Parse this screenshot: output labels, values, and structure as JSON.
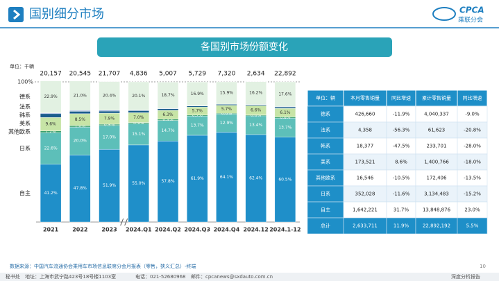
{
  "header": {
    "title": "国别细分市场",
    "logo": "CPCA",
    "logo_sub": "乘联分会"
  },
  "banner": "各国别市场份额变化",
  "chart_data": {
    "type": "stacked_bar_100",
    "unit": "单位：千辆",
    "categories": [
      "2021",
      "2022",
      "2023",
      "2024.Q1",
      "2024.Q2",
      "2024.Q3",
      "2024.Q4",
      "2024.12",
      "2024.1-12"
    ],
    "totals": [
      20157,
      20545,
      21707,
      4836,
      5007,
      5729,
      7320,
      2634,
      22892
    ],
    "total_labels": [
      "20,157",
      "20,545",
      "21,707",
      "4,836",
      "5,007",
      "5,729",
      "7,320",
      "2,634",
      "22,892"
    ],
    "ylim": [
      0,
      100
    ],
    "yticks": [
      {
        "value": 100,
        "label": "100%"
      }
    ],
    "series": [
      {
        "name": "自主",
        "color": "#1f8fc9",
        "values": [
          41.2,
          47.8,
          51.9,
          55.0,
          57.8,
          61.9,
          64.1,
          62.4,
          60.5
        ],
        "value_labels": [
          "41.2%",
          "47.8%",
          "51.9%",
          "55.0%",
          "57.8%",
          "61.9%",
          "64.1%",
          "62.4%",
          "60.5%"
        ]
      },
      {
        "name": "日系",
        "color": "#5dbfb9",
        "values": [
          22.6,
          20.0,
          17.0,
          15.1,
          14.7,
          13.7,
          12.9,
          13.4,
          13.7
        ],
        "value_labels": [
          "22.6%",
          "20.0%",
          "17.0%",
          "15.1%",
          "14.7%",
          "13.7%",
          "12.9%",
          "13.4%",
          "13.7%"
        ]
      },
      {
        "name": "其他欧系",
        "color": "#3aa06c",
        "values": [
          1.2,
          1.0,
          0.9,
          0.9,
          0.9,
          0.7,
          0.6,
          0.6,
          0.8
        ],
        "value_labels": [
          "1.2%",
          "1.0%",
          "0.9%",
          "0.9%",
          "0.9%",
          "0.7%",
          "0.6%",
          "0.6%",
          "0.8%"
        ]
      },
      {
        "name": "美系",
        "color": "#c7e4a6",
        "values": [
          9.6,
          8.5,
          7.9,
          7.0,
          6.3,
          5.7,
          5.7,
          6.6,
          6.1
        ],
        "value_labels": [
          "9.6%",
          "8.5%",
          "7.9%",
          "7.0%",
          "6.3%",
          "5.7%",
          "5.7%",
          "6.6%",
          "6.1%"
        ]
      },
      {
        "name": "韩系",
        "color": "#1b5d8d",
        "values": [
          2.7,
          1.7,
          1.5,
          1.5,
          1.2,
          0.8,
          0.7,
          0.7,
          1.0
        ],
        "value_labels": [
          null,
          null,
          null,
          null,
          null,
          null,
          null,
          null,
          null
        ]
      },
      {
        "name": "法系",
        "color": "#8fa8d8",
        "values": [
          0.5,
          0.6,
          0.6,
          0.4,
          0.2,
          0.2,
          0.1,
          0.2,
          0.3
        ],
        "value_labels": [
          null,
          null,
          null,
          null,
          null,
          null,
          null,
          null,
          null
        ]
      },
      {
        "name": "德系",
        "color": "#e2f1e2",
        "values": [
          22.9,
          21.0,
          20.4,
          20.1,
          18.7,
          16.9,
          15.9,
          16.2,
          17.6
        ],
        "value_labels": [
          "22.9%",
          "21.0%",
          "20.4%",
          "20.1%",
          "18.7%",
          "16.9%",
          "15.9%",
          "16.2%",
          "17.6%"
        ]
      }
    ]
  },
  "table": {
    "header": [
      "单位：辆",
      "本月零售销量",
      "同比增速",
      "累计零售销量",
      "同比增速"
    ],
    "rows": [
      [
        "德系",
        "426,660",
        "-11.9%",
        "4,040,337",
        "-9.0%"
      ],
      [
        "法系",
        "4,358",
        "-56.3%",
        "61,623",
        "-20.8%"
      ],
      [
        "韩系",
        "18,377",
        "-47.5%",
        "233,701",
        "-28.0%"
      ],
      [
        "美系",
        "173,521",
        "8.6%",
        "1,400,766",
        "-18.0%"
      ],
      [
        "其他欧系",
        "16,546",
        "-10.5%",
        "172,406",
        "-13.5%"
      ],
      [
        "日系",
        "352,028",
        "-11.6%",
        "3,134,483",
        "-15.2%"
      ],
      [
        "自主",
        "1,642,221",
        "31.7%",
        "13,848,876",
        "23.0%"
      ],
      [
        "总计",
        "2,633,711",
        "11.9%",
        "22,892,192",
        "5.5%"
      ]
    ]
  },
  "source": "数据来源：中国汽车流通协会乘用车市场信息联席分会月报表（零售，狭义汇总）-终端",
  "footer": {
    "org": "秘书处",
    "address": "地址：上海市武宁路423号18号楼1103室",
    "phone": "电话：021-52680968",
    "email": "邮件：cpcanews@sxdauto.com.cn",
    "report": "深度分析报告",
    "page": "10"
  }
}
